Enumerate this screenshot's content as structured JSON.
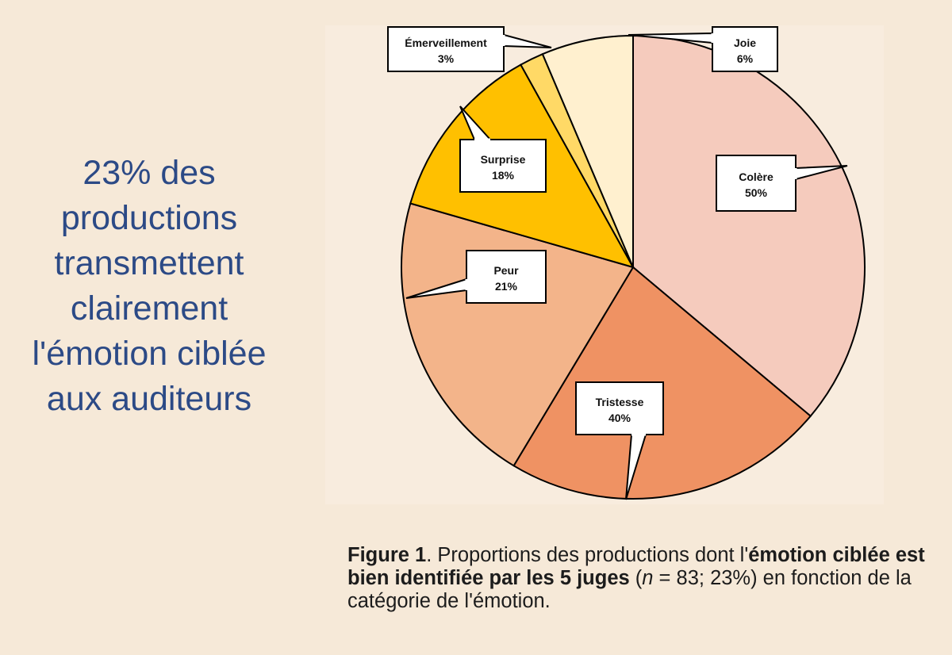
{
  "headline": "23% des productions transmettent clairement l'émotion ciblée aux auditeurs",
  "caption": {
    "fig_label": "Figure 1",
    "sep": ". ",
    "text1": "Proportions des productions dont l'",
    "bold_text": "émotion ciblée est bien identifiée par les 5 juges",
    "text2": " (",
    "n_symbol": "n",
    "text3": " = 83; 23%) en fonction de la catégorie de l'émotion."
  },
  "colors": {
    "background": "#f6e9d8",
    "headline": "#2c4a86"
  },
  "chart_data": {
    "type": "pie",
    "slices": [
      {
        "label": "Colère",
        "value_label": "50%",
        "color": "#f5cbbd"
      },
      {
        "label": "Tristesse",
        "value_label": "40%",
        "color": "#ef9263"
      },
      {
        "label": "Peur",
        "value_label": "21%",
        "color": "#f3b48a"
      },
      {
        "label": "Surprise",
        "value_label": "18%",
        "color": "#ffc000"
      },
      {
        "label": "Émerveillement",
        "value_label": "3%",
        "color": "#ffd966"
      },
      {
        "label": "Joie",
        "value_label": "6%",
        "color": "#fff0cf"
      }
    ]
  }
}
